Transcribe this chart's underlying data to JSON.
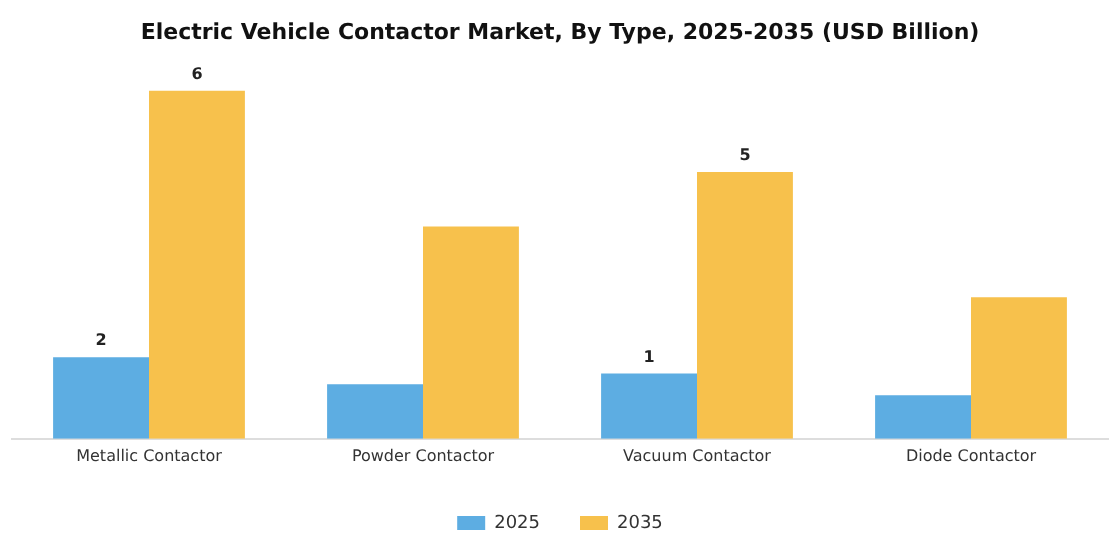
{
  "chart_data": {
    "type": "bar",
    "title": "Electric Vehicle Contactor Market, By Type, 2025-2035 (USD Billion)",
    "categories": [
      "Metallic Contactor",
      "Powder Contactor",
      "Vacuum Contactor",
      "Diode Contactor"
    ],
    "series": [
      {
        "name": "2025",
        "color": "#5dade2",
        "values": [
          1.5,
          1.0,
          1.2,
          0.8
        ],
        "value_labels": [
          "2",
          null,
          "1",
          null
        ]
      },
      {
        "name": "2035",
        "color": "#f7c14c",
        "values": [
          6.4,
          3.9,
          4.9,
          2.6
        ],
        "value_labels": [
          "6",
          null,
          "5",
          null
        ]
      }
    ],
    "legend": "bottom",
    "grid": false
  }
}
